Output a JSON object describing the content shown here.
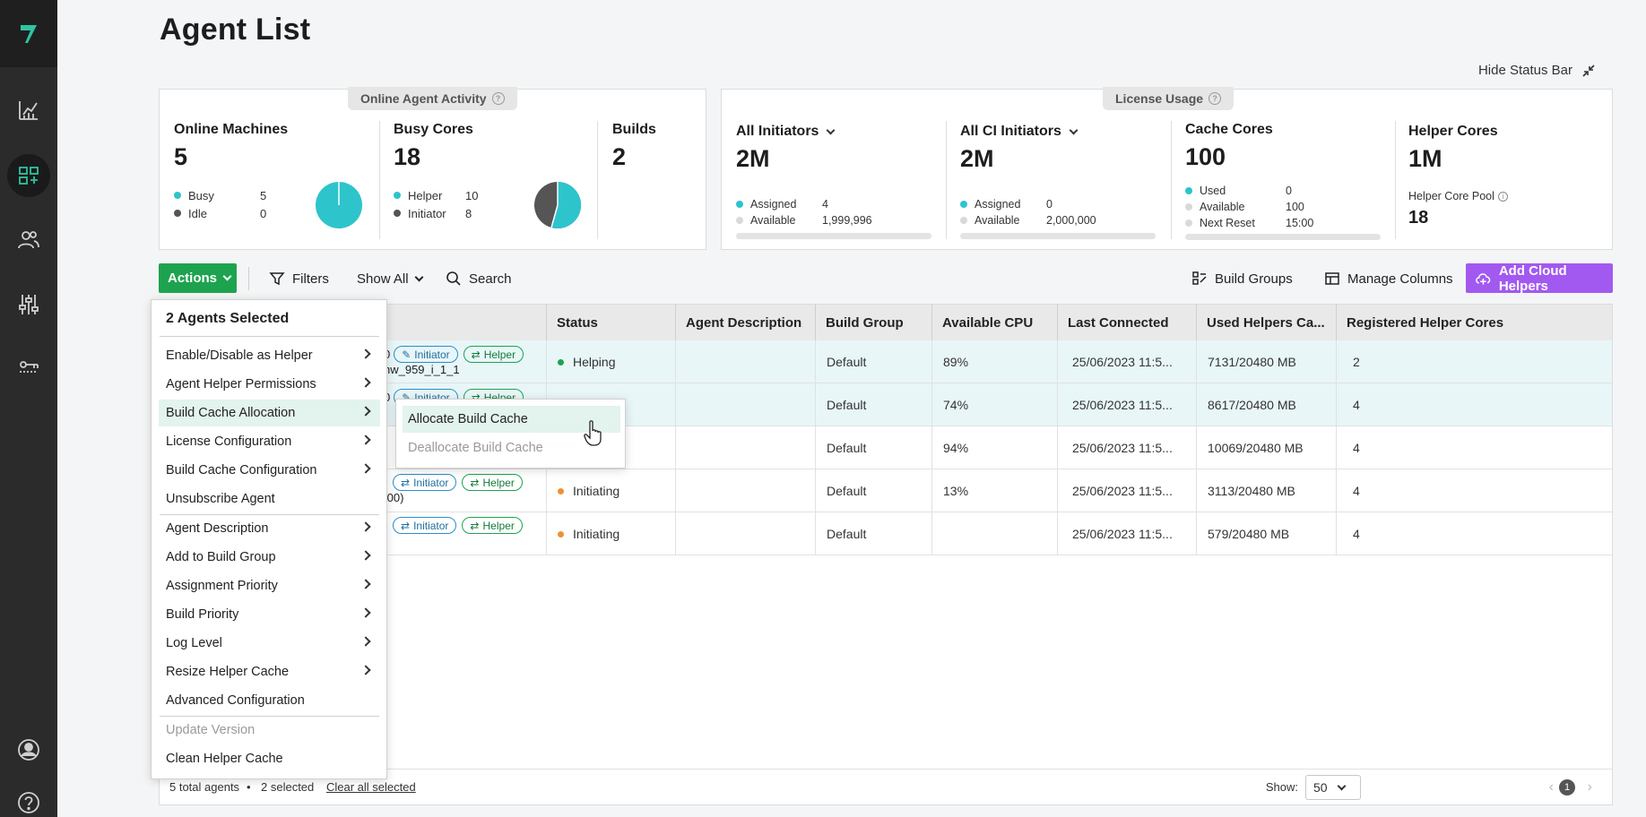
{
  "title": "Agent List",
  "hide_status_bar": "Hide Status Bar",
  "online_panel": {
    "label": "Online Agent Activity",
    "online_machines": {
      "title": "Online Machines",
      "value": "5",
      "legend": [
        {
          "key": "Busy",
          "val": "5"
        },
        {
          "key": "Idle",
          "val": "0"
        }
      ]
    },
    "busy_cores": {
      "title": "Busy Cores",
      "value": "18",
      "legend": [
        {
          "key": "Helper",
          "val": "10"
        },
        {
          "key": "Initiator",
          "val": "8"
        }
      ]
    },
    "builds": {
      "title": "Builds",
      "value": "2"
    }
  },
  "license_panel": {
    "label": "License Usage",
    "all_initiators": {
      "title": "All Initiators",
      "value": "2M",
      "legend": [
        {
          "key": "Assigned",
          "val": "4"
        },
        {
          "key": "Available",
          "val": "1,999,996"
        }
      ]
    },
    "all_ci_initiators": {
      "title": "All CI Initiators",
      "value": "2M",
      "legend": [
        {
          "key": "Assigned",
          "val": "0"
        },
        {
          "key": "Available",
          "val": "2,000,000"
        }
      ]
    },
    "cache_cores": {
      "title": "Cache Cores",
      "value": "100",
      "legend": [
        {
          "key": "Used",
          "val": "0"
        },
        {
          "key": "Available",
          "val": "100"
        },
        {
          "key": "Next Reset",
          "val": "15:00"
        }
      ]
    },
    "helper_cores": {
      "title": "Helper Cores",
      "value": "1M",
      "pool_label": "Helper Core Pool",
      "pool_value": "18"
    }
  },
  "toolbar": {
    "actions": "Actions",
    "filters": "Filters",
    "show_all": "Show All",
    "search": "Search",
    "build_groups": "Build Groups",
    "manage_columns": "Manage Columns",
    "add_cloud_helpers": "Add Cloud Helpers"
  },
  "table": {
    "columns": [
      "Status",
      "Agent Description",
      "Build Group",
      "Available CPU",
      "Last Connected",
      "Used Helpers Ca...",
      "Registered Helper Cores"
    ],
    "rows": [
      {
        "agent_frag": "nw_959_i_1_1",
        "prefix": "0",
        "status": "Helping",
        "status_color": "#1da34f",
        "desc": "",
        "group": "Default",
        "cpu": "89%",
        "last": "25/06/2023 11:5...",
        "cache": "7131/20480 MB",
        "cores": "2"
      },
      {
        "agent_frag": "",
        "prefix": "0",
        "status": "",
        "status_color": "",
        "desc": "",
        "group": "Default",
        "cpu": "74%",
        "last": "25/06/2023 11:5...",
        "cache": "8617/20480 MB",
        "cores": "4"
      },
      {
        "agent_frag": "",
        "prefix": "",
        "status": "",
        "status_color": "",
        "desc": "",
        "group": "Default",
        "cpu": "94%",
        "last": "25/06/2023 11:5...",
        "cache": "10069/20480 MB",
        "cores": "4"
      },
      {
        "agent_frag": ".00)",
        "prefix": "",
        "status": "Initiating",
        "status_color": "#f0912e",
        "desc": "",
        "group": "Default",
        "cpu": "13%",
        "last": "25/06/2023 11:5...",
        "cache": "3113/20480 MB",
        "cores": "4"
      },
      {
        "agent_frag": "",
        "prefix": "",
        "status": "Initiating",
        "status_color": "#f0912e",
        "desc": "",
        "group": "Default",
        "cpu": "",
        "last": "25/06/2023 11:5...",
        "cache": "579/20480 MB",
        "cores": "4"
      }
    ],
    "chip_initiator": "Initiator",
    "chip_helper": "Helper"
  },
  "footer": {
    "total": "5 total agents",
    "selected": "2 selected",
    "clear": "Clear all selected",
    "show_label": "Show:",
    "show_value": "50",
    "page": "1"
  },
  "menu": {
    "header": "2 Agents Selected",
    "items": [
      {
        "label": "Enable/Disable as Helper",
        "sub": true
      },
      {
        "label": "Agent Helper Permissions",
        "sub": true
      },
      {
        "label": "Build Cache Allocation",
        "sub": true
      },
      {
        "label": "License Configuration",
        "sub": true
      },
      {
        "label": "Build Cache Configuration",
        "sub": true
      },
      {
        "label": "Unsubscribe Agent",
        "sub": false
      },
      {
        "label": "Agent Description",
        "sub": true
      },
      {
        "label": "Add to Build Group",
        "sub": true
      },
      {
        "label": "Assignment Priority",
        "sub": true
      },
      {
        "label": "Build Priority",
        "sub": true
      },
      {
        "label": "Log Level",
        "sub": true
      },
      {
        "label": "Resize Helper Cache",
        "sub": true
      },
      {
        "label": "Advanced Configuration",
        "sub": false
      },
      {
        "label": "Update Version",
        "sub": false
      },
      {
        "label": "Clean Helper Cache",
        "sub": false
      }
    ],
    "submenu": [
      "Allocate Build Cache",
      "Deallocate Build Cache"
    ]
  },
  "colors": {
    "accent_green": "#1da34f",
    "accent_purple": "#a259f0",
    "teal": "#2ec4cc",
    "sidebar": "#2b2b2b"
  },
  "icons": [
    "logo-icon",
    "analytics-icon",
    "agents-icon",
    "users-icon",
    "settings-sliders-icon",
    "keys-icon",
    "profile-icon",
    "help-icon"
  ]
}
